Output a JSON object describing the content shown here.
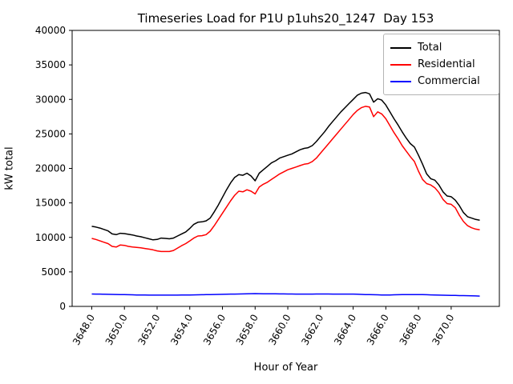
{
  "figure": {
    "title": "Timeseries Load for P1U p1uhs20_1247  Day 153",
    "xlabel": "Hour of Year",
    "ylabel": "kW total"
  },
  "chart_data": {
    "type": "line",
    "title": "Timeseries Load for P1U p1uhs20_1247  Day 153",
    "xlabel": "Hour of Year",
    "ylabel": "kW total",
    "xlim": [
      3646.8,
      3672.95
    ],
    "ylim": [
      0,
      40000
    ],
    "grid": false,
    "legend_position": "upper right",
    "x_tick_values": [
      3648,
      3650,
      3652,
      3654,
      3656,
      3658,
      3660,
      3662,
      3664,
      3666,
      3668,
      3670
    ],
    "x_tick_labels": [
      "3648.0",
      "3650.0",
      "3652.0",
      "3654.0",
      "3656.0",
      "3658.0",
      "3660.0",
      "3662.0",
      "3664.0",
      "3666.0",
      "3668.0",
      "3670.0"
    ],
    "x_tick_rotation_deg": 60,
    "y_tick_values": [
      0,
      5000,
      10000,
      15000,
      20000,
      25000,
      30000,
      35000,
      40000
    ],
    "y_tick_labels": [
      "0",
      "5000",
      "10000",
      "15000",
      "20000",
      "25000",
      "30000",
      "35000",
      "40000"
    ],
    "x": [
      3648,
      3648.25,
      3648.5,
      3648.75,
      3649,
      3649.25,
      3649.5,
      3649.75,
      3650,
      3650.25,
      3650.5,
      3650.75,
      3651,
      3651.25,
      3651.5,
      3651.75,
      3652,
      3652.25,
      3652.5,
      3652.75,
      3653,
      3653.25,
      3653.5,
      3653.75,
      3654,
      3654.25,
      3654.5,
      3654.75,
      3655,
      3655.25,
      3655.5,
      3655.75,
      3656,
      3656.25,
      3656.5,
      3656.75,
      3657,
      3657.25,
      3657.5,
      3657.75,
      3658,
      3658.25,
      3658.5,
      3658.75,
      3659,
      3659.25,
      3659.5,
      3659.75,
      3660,
      3660.25,
      3660.5,
      3660.75,
      3661,
      3661.25,
      3661.5,
      3661.75,
      3662,
      3662.25,
      3662.5,
      3662.75,
      3663,
      3663.25,
      3663.5,
      3663.75,
      3664,
      3664.25,
      3664.5,
      3664.75,
      3665,
      3665.25,
      3665.5,
      3665.75,
      3666,
      3666.25,
      3666.5,
      3666.75,
      3667,
      3667.25,
      3667.5,
      3667.75,
      3668,
      3668.25,
      3668.5,
      3668.75,
      3669,
      3669.25,
      3669.5,
      3669.75,
      3670,
      3670.25,
      3670.5,
      3670.75,
      3671,
      3671.25,
      3671.5,
      3671.75
    ],
    "series": [
      {
        "name": "Total",
        "color": "#000000",
        "values": [
          11600,
          11500,
          11350,
          11150,
          10950,
          10500,
          10400,
          10600,
          10550,
          10450,
          10350,
          10200,
          10100,
          9950,
          9800,
          9650,
          9700,
          9900,
          9850,
          9800,
          9900,
          10200,
          10500,
          10800,
          11300,
          11900,
          12200,
          12250,
          12400,
          12800,
          13700,
          14700,
          15800,
          16900,
          17900,
          18700,
          19100,
          19000,
          19300,
          18900,
          18200,
          19300,
          19800,
          20300,
          20800,
          21100,
          21500,
          21700,
          21900,
          22100,
          22400,
          22700,
          22900,
          23000,
          23300,
          23900,
          24600,
          25300,
          26100,
          26800,
          27500,
          28200,
          28800,
          29400,
          30000,
          30600,
          30900,
          31000,
          30800,
          29600,
          30100,
          29900,
          29200,
          28200,
          27200,
          26300,
          25300,
          24400,
          23600,
          23100,
          21900,
          20600,
          19200,
          18500,
          18300,
          17600,
          16600,
          16000,
          15900,
          15400,
          14600,
          13600,
          13000,
          12800,
          12600,
          12500
        ]
      },
      {
        "name": "Residential",
        "color": "#ff0000",
        "values": [
          9850,
          9700,
          9500,
          9300,
          9100,
          8700,
          8600,
          8900,
          8850,
          8700,
          8600,
          8550,
          8500,
          8400,
          8300,
          8200,
          8050,
          7950,
          7950,
          7950,
          8100,
          8450,
          8800,
          9100,
          9500,
          9900,
          10200,
          10250,
          10400,
          10900,
          11700,
          12600,
          13500,
          14400,
          15300,
          16100,
          16700,
          16600,
          16900,
          16700,
          16300,
          17300,
          17700,
          18000,
          18400,
          18800,
          19200,
          19500,
          19800,
          20000,
          20200,
          20400,
          20600,
          20700,
          21000,
          21500,
          22200,
          22900,
          23600,
          24300,
          25000,
          25700,
          26400,
          27100,
          27800,
          28400,
          28800,
          29000,
          28900,
          27500,
          28200,
          27900,
          27200,
          26200,
          25200,
          24300,
          23300,
          22500,
          21700,
          21000,
          19600,
          18400,
          17800,
          17600,
          17200,
          16500,
          15500,
          14900,
          14800,
          14300,
          13200,
          12300,
          11700,
          11400,
          11200,
          11100
        ]
      },
      {
        "name": "Commercial",
        "color": "#0000ff",
        "values": [
          1800,
          1790,
          1780,
          1760,
          1750,
          1740,
          1730,
          1710,
          1700,
          1690,
          1680,
          1660,
          1650,
          1650,
          1640,
          1630,
          1630,
          1630,
          1630,
          1640,
          1640,
          1640,
          1650,
          1650,
          1660,
          1670,
          1680,
          1690,
          1700,
          1710,
          1730,
          1740,
          1750,
          1760,
          1780,
          1790,
          1800,
          1810,
          1830,
          1840,
          1850,
          1840,
          1830,
          1830,
          1820,
          1820,
          1810,
          1810,
          1800,
          1800,
          1790,
          1790,
          1790,
          1790,
          1790,
          1800,
          1800,
          1800,
          1800,
          1790,
          1790,
          1790,
          1790,
          1780,
          1780,
          1760,
          1740,
          1720,
          1700,
          1690,
          1680,
          1660,
          1650,
          1660,
          1680,
          1690,
          1700,
          1710,
          1710,
          1720,
          1720,
          1700,
          1690,
          1670,
          1650,
          1640,
          1620,
          1610,
          1600,
          1590,
          1570,
          1560,
          1550,
          1540,
          1520,
          1500
        ]
      }
    ]
  }
}
